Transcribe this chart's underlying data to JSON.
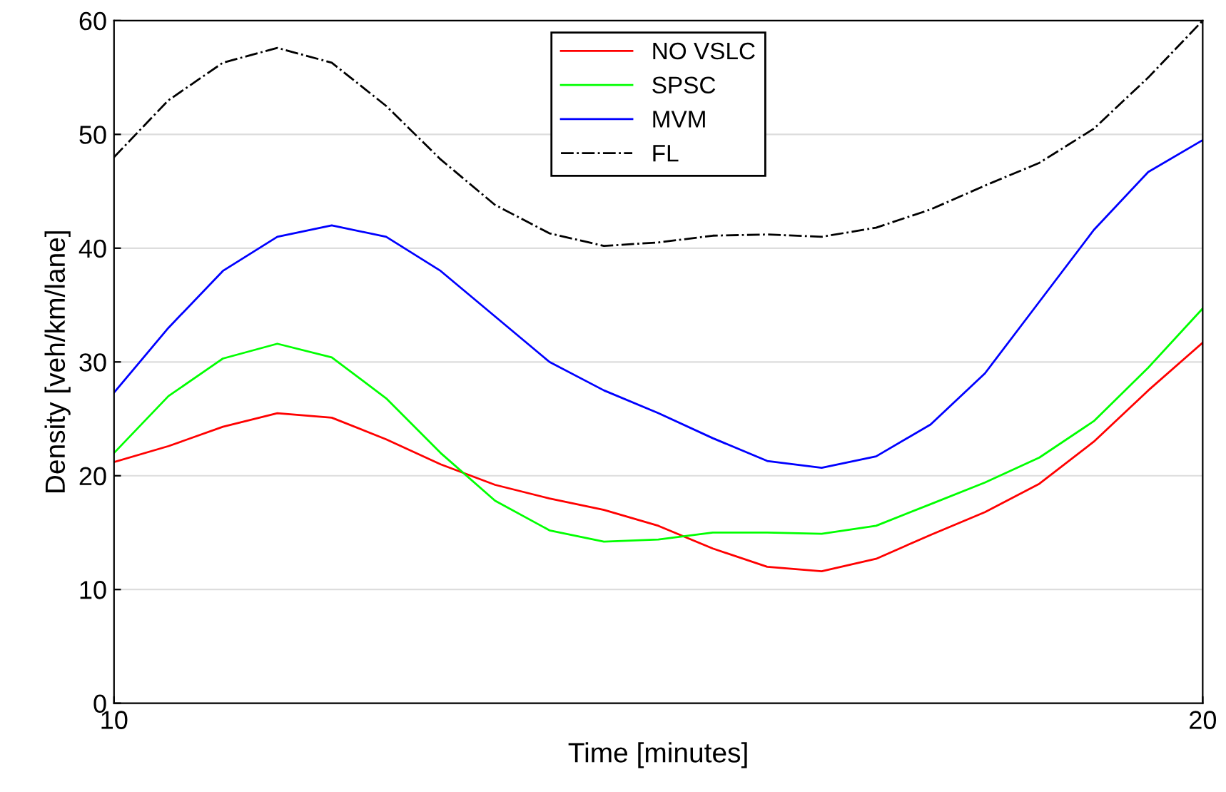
{
  "chart_data": {
    "type": "line",
    "xlabel": "Time [minutes]",
    "ylabel": "Density [veh/km/lane]",
    "x": [
      10,
      10.5,
      11,
      11.5,
      12,
      12.5,
      13,
      13.5,
      14,
      14.5,
      15,
      15.5,
      16,
      16.5,
      17,
      17.5,
      18,
      18.5,
      19,
      19.5,
      20
    ],
    "series": [
      {
        "name": "NO VSLC",
        "color": "#ff0000",
        "values": [
          21.2,
          22.6,
          24.3,
          25.5,
          25.1,
          23.2,
          21,
          19.2,
          18,
          17,
          15.6,
          13.6,
          12,
          11.6,
          12.7,
          14.8,
          16.8,
          19.3,
          23,
          27.5,
          31.7
        ]
      },
      {
        "name": "SPSC",
        "color": "#00ff00",
        "values": [
          22,
          27,
          30.3,
          31.6,
          30.4,
          26.8,
          22,
          17.8,
          15.2,
          14.2,
          14.4,
          15,
          15,
          14.9,
          15.6,
          17.5,
          19.4,
          21.6,
          24.8,
          29.5,
          34.7
        ]
      },
      {
        "name": "MVM",
        "color": "#0000ff",
        "values": [
          27.3,
          33,
          38,
          41,
          42,
          41,
          38,
          34,
          30,
          27.5,
          25.5,
          23.3,
          21.3,
          20.7,
          21.7,
          24.5,
          29,
          35.3,
          41.6,
          46.7,
          49.5
        ]
      },
      {
        "name": "FL",
        "color": "#000000",
        "line_style": "dashdot",
        "values": [
          48,
          53,
          56.3,
          57.6,
          56.3,
          52.5,
          47.8,
          43.8,
          41.3,
          40.2,
          40.5,
          41.1,
          41.2,
          41,
          41.8,
          43.4,
          45.5,
          47.5,
          50.5,
          55,
          60
        ]
      }
    ],
    "xlim": [
      10,
      20
    ],
    "xticks": [
      10,
      20
    ],
    "ylim": [
      0,
      60
    ],
    "yticks": [
      0,
      10,
      20,
      30,
      40,
      50,
      60
    ],
    "grid": true,
    "legend": "top",
    "marker": "none"
  }
}
